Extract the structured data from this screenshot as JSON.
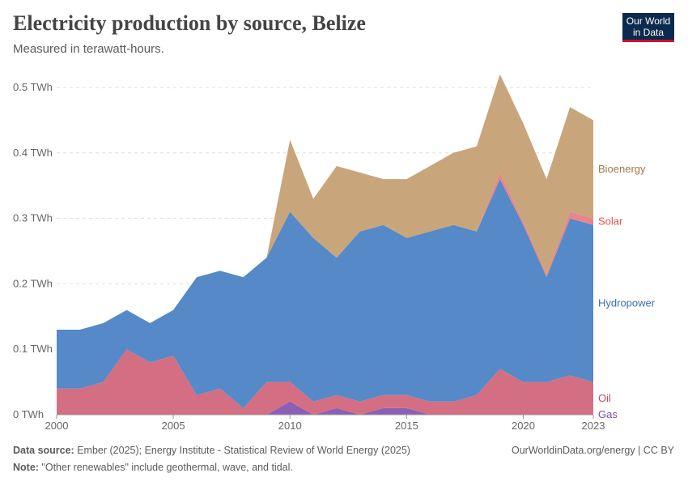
{
  "header": {
    "title": "Electricity production by source, Belize",
    "subtitle": "Measured in terawatt-hours.",
    "logo_line1": "Our World",
    "logo_line2": "in Data"
  },
  "footer": {
    "source_label": "Data source:",
    "source_text": " Ember (2025); Energy Institute - Statistical Review of World Energy (2025)",
    "note_label": "Note:",
    "note_text": " \"Other renewables\" include geothermal, wave, and tidal.",
    "url": "OurWorldinData.org/energy | CC BY"
  },
  "chart_data": {
    "type": "area",
    "stacked": true,
    "title": "Electricity production by source, Belize",
    "unit": "TWh",
    "x": [
      2000,
      2001,
      2002,
      2003,
      2004,
      2005,
      2006,
      2007,
      2008,
      2009,
      2010,
      2011,
      2012,
      2013,
      2014,
      2015,
      2016,
      2017,
      2018,
      2019,
      2020,
      2021,
      2022,
      2023
    ],
    "xticks": [
      "2000",
      "2005",
      "2010",
      "2015",
      "2020",
      "2023"
    ],
    "yticks": [
      "0 TWh",
      "0.1 TWh",
      "0.2 TWh",
      "0.3 TWh",
      "0.4 TWh",
      "0.5 TWh"
    ],
    "ylim": [
      0,
      0.5
    ],
    "series": [
      {
        "name": "Gas",
        "color": "#8a5fb5",
        "values": [
          0,
          0,
          0,
          0,
          0,
          0,
          0,
          0,
          0,
          0,
          0.02,
          0,
          0.01,
          0,
          0.01,
          0.01,
          0,
          0,
          0,
          0,
          0,
          0,
          0,
          0
        ]
      },
      {
        "name": "Oil",
        "color": "#d46f83",
        "values": [
          0.04,
          0.04,
          0.05,
          0.1,
          0.08,
          0.09,
          0.03,
          0.04,
          0.01,
          0.05,
          0.03,
          0.02,
          0.02,
          0.02,
          0.02,
          0.02,
          0.02,
          0.02,
          0.03,
          0.07,
          0.05,
          0.05,
          0.06,
          0.05
        ]
      },
      {
        "name": "Hydropower",
        "color": "#5589c8",
        "values": [
          0.09,
          0.09,
          0.09,
          0.06,
          0.06,
          0.07,
          0.18,
          0.18,
          0.2,
          0.19,
          0.26,
          0.25,
          0.21,
          0.26,
          0.26,
          0.24,
          0.26,
          0.27,
          0.25,
          0.29,
          0.24,
          0.16,
          0.24,
          0.24
        ]
      },
      {
        "name": "Solar",
        "color": "#e8858a",
        "values": [
          0,
          0,
          0,
          0,
          0,
          0,
          0,
          0,
          0,
          0,
          0,
          0,
          0,
          0,
          0,
          0,
          0,
          0,
          0,
          0.01,
          0.005,
          0.005,
          0.01,
          0.01
        ]
      },
      {
        "name": "Bioenergy",
        "color": "#c9a57b",
        "values": [
          0,
          0,
          0,
          0,
          0,
          0,
          0,
          0,
          0,
          0,
          0.11,
          0.06,
          0.14,
          0.09,
          0.07,
          0.09,
          0.1,
          0.11,
          0.13,
          0.15,
          0.15,
          0.145,
          0.16,
          0.15
        ]
      }
    ],
    "labels": [
      {
        "text": "Bioenergy",
        "series": "Bioenergy",
        "color": "#a0784e"
      },
      {
        "text": "Solar",
        "series": "Solar",
        "color": "#d9534f"
      },
      {
        "text": "Hydropower",
        "series": "Hydropower",
        "color": "#3a6fb5"
      },
      {
        "text": "Oil",
        "series": "Oil",
        "color": "#c04962"
      },
      {
        "text": "Gas",
        "series": "Gas",
        "color": "#7a4fa5"
      }
    ]
  }
}
